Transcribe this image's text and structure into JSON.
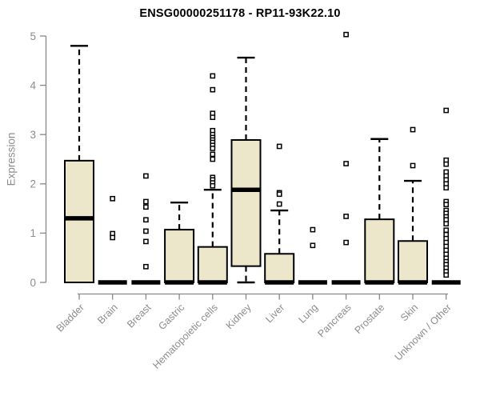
{
  "style": {
    "box_fill": "#ece7ca",
    "box_border": "#000000",
    "whisker_color": "#000000",
    "outlier_fill": "#ffffff",
    "axis_color": "#878787",
    "label_color": "#8c8c8c",
    "title_color": "#000000",
    "background": "#ffffff"
  },
  "chart_data": {
    "type": "boxplot",
    "title": "ENSG00000251178 - RP11-93K22.10",
    "xlabel": "",
    "ylabel": "Expression",
    "ylim": [
      0,
      5
    ],
    "yticks": [
      0,
      1,
      2,
      3,
      4,
      5
    ],
    "grid": false,
    "legend": "none",
    "categories": [
      "Bladder",
      "Brain",
      "Breast",
      "Gastric",
      "Hematopoietic cells",
      "Kidney",
      "Liver",
      "Lung",
      "Pancreas",
      "Prostate",
      "Skin",
      "Unknown / Other"
    ],
    "series": [
      {
        "name": "Bladder",
        "q1": 0,
        "median": 1.3,
        "q3": 2.47,
        "whisker_low": 0,
        "whisker_high": 4.8,
        "outliers": []
      },
      {
        "name": "Brain",
        "q1": 0,
        "median": 0,
        "q3": 0,
        "whisker_low": 0,
        "whisker_high": 0,
        "outliers": [
          1.7,
          0.99,
          0.91
        ]
      },
      {
        "name": "Breast",
        "q1": 0,
        "median": 0,
        "q3": 0,
        "whisker_low": 0,
        "whisker_high": 0,
        "outliers": [
          2.16,
          1.64,
          1.53,
          1.27,
          1.04,
          0.83,
          0.32
        ]
      },
      {
        "name": "Gastric",
        "q1": 0,
        "median": 0,
        "q3": 1.07,
        "whisker_low": 0,
        "whisker_high": 1.62,
        "outliers": []
      },
      {
        "name": "Hematopoietic cells",
        "q1": 0,
        "median": 0,
        "q3": 0.72,
        "whisker_low": 0,
        "whisker_high": 1.88,
        "outliers": [
          4.19,
          3.91,
          3.43,
          3.35,
          3.08,
          3.0,
          2.94,
          2.89,
          2.84,
          2.78,
          2.72,
          2.6,
          2.5,
          2.13,
          2.08,
          2.02,
          1.96
        ]
      },
      {
        "name": "Kidney",
        "q1": 0.33,
        "median": 1.88,
        "q3": 2.89,
        "whisker_low": 0,
        "whisker_high": 4.56,
        "outliers": []
      },
      {
        "name": "Liver",
        "q1": 0,
        "median": 0,
        "q3": 0.58,
        "whisker_low": 0,
        "whisker_high": 1.46,
        "outliers": [
          2.76,
          1.82,
          1.79,
          1.59
        ]
      },
      {
        "name": "Lung",
        "q1": 0,
        "median": 0,
        "q3": 0,
        "whisker_low": 0,
        "whisker_high": 0,
        "outliers": [
          1.07,
          0.75
        ]
      },
      {
        "name": "Pancreas",
        "q1": 0,
        "median": 0,
        "q3": 0,
        "whisker_low": 0,
        "whisker_high": 0,
        "outliers": [
          5.03,
          2.41,
          1.34,
          0.81
        ]
      },
      {
        "name": "Prostate",
        "q1": 0,
        "median": 0,
        "q3": 1.28,
        "whisker_low": 0,
        "whisker_high": 2.91,
        "outliers": []
      },
      {
        "name": "Skin",
        "q1": 0,
        "median": 0,
        "q3": 0.84,
        "whisker_low": 0,
        "whisker_high": 2.06,
        "outliers": [
          3.1,
          2.37
        ]
      },
      {
        "name": "Unknown / Other",
        "q1": 0,
        "median": 0,
        "q3": 0,
        "whisker_low": 0,
        "whisker_high": 0,
        "outliers": [
          3.49,
          2.48,
          2.4,
          2.24,
          2.16,
          2.08,
          2.0,
          1.92,
          1.64,
          1.58,
          1.46,
          1.4,
          1.33,
          1.27,
          1.19,
          1.06,
          0.97,
          0.89,
          0.81,
          0.73,
          0.65,
          0.57,
          0.49,
          0.42,
          0.36,
          0.29,
          0.22,
          0.15
        ]
      }
    ]
  }
}
